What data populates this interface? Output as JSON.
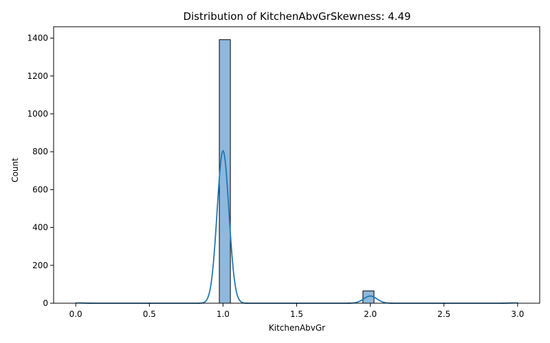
{
  "chart_data": {
    "type": "bar",
    "title": "Distribution of KitchenAbvGrSkewness: 4.49",
    "xlabel": "KitchenAbvGr",
    "ylabel": "Count",
    "xlim": [
      -0.15,
      3.15
    ],
    "ylim": [
      0,
      1460
    ],
    "xticks": [
      0.0,
      0.5,
      1.0,
      1.5,
      2.0,
      2.5,
      3.0
    ],
    "xtick_labels": [
      "0.0",
      "0.5",
      "1.0",
      "1.5",
      "2.0",
      "2.5",
      "3.0"
    ],
    "yticks": [
      0,
      200,
      400,
      600,
      800,
      1000,
      1200,
      1400
    ],
    "ytick_labels": [
      "0",
      "200",
      "400",
      "600",
      "800",
      "1000",
      "1200",
      "1400"
    ],
    "grid": false,
    "bar_color": "#8fb8dc",
    "bar_edge_color": "#000000",
    "kde_color": "#1f77b4",
    "bars": [
      {
        "x0": 0.0,
        "x1": 0.075,
        "count": 1
      },
      {
        "x0": 0.975,
        "x1": 1.05,
        "count": 1392
      },
      {
        "x0": 1.95,
        "x1": 2.025,
        "count": 65
      },
      {
        "x0": 2.925,
        "x1": 3.0,
        "count": 2
      }
    ],
    "kde": {
      "peaks": [
        {
          "center": 1.0,
          "height": 805,
          "sigma": 0.04
        },
        {
          "center": 2.0,
          "height": 38,
          "sigma": 0.045
        }
      ],
      "baseline": 1.5
    }
  }
}
